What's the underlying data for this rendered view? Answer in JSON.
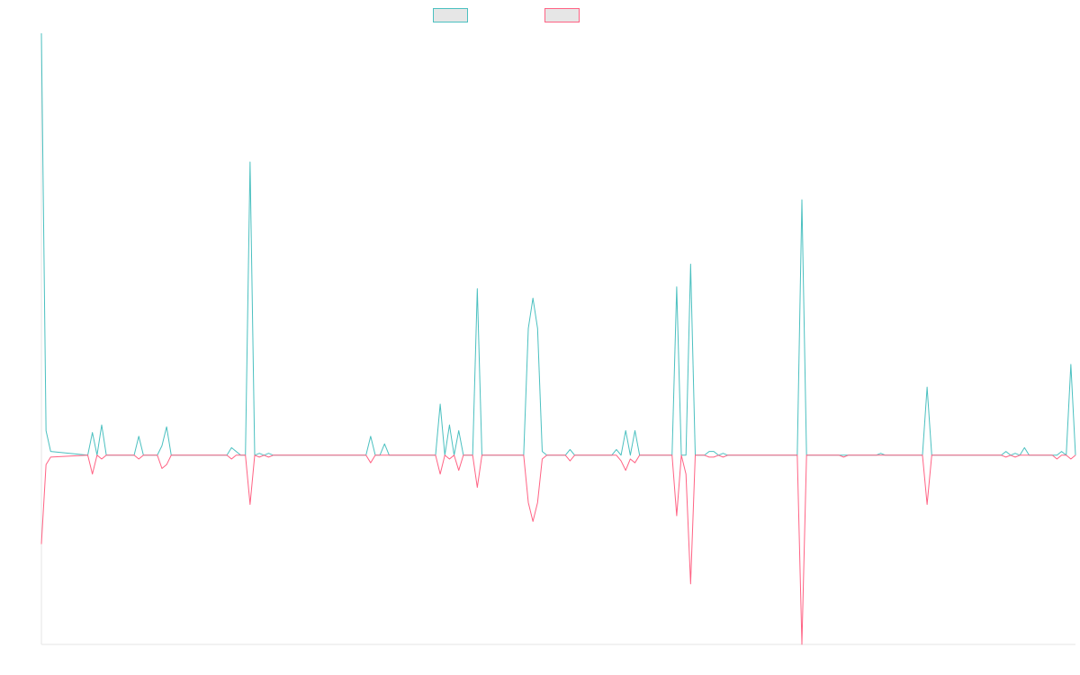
{
  "chart_data": {
    "type": "line",
    "title": "",
    "xlabel": "",
    "ylabel": "",
    "legend": {
      "placement": "top-center",
      "show_text": false
    },
    "grid": false,
    "x_count": 224,
    "ylim": [
      -100,
      223
    ],
    "series": [
      {
        "color": "#4bc0c0",
        "points": [
          [
            0,
            223
          ],
          [
            1,
            13
          ],
          [
            2,
            2
          ],
          [
            10,
            0
          ],
          [
            11,
            12
          ],
          [
            12,
            0
          ],
          [
            13,
            16
          ],
          [
            14,
            0
          ],
          [
            20,
            0
          ],
          [
            21,
            10
          ],
          [
            22,
            0
          ],
          [
            25,
            0
          ],
          [
            26,
            5
          ],
          [
            27,
            15
          ],
          [
            28,
            0
          ],
          [
            40,
            0
          ],
          [
            41,
            4
          ],
          [
            42,
            2
          ],
          [
            43,
            0
          ],
          [
            44,
            0
          ],
          [
            45,
            155
          ],
          [
            46,
            0
          ],
          [
            47,
            1
          ],
          [
            48,
            0
          ],
          [
            49,
            1
          ],
          [
            50,
            0
          ],
          [
            70,
            0
          ],
          [
            71,
            10
          ],
          [
            72,
            0
          ],
          [
            73,
            0
          ],
          [
            74,
            6
          ],
          [
            75,
            0
          ],
          [
            85,
            0
          ],
          [
            86,
            27
          ],
          [
            87,
            0
          ],
          [
            88,
            16
          ],
          [
            89,
            0
          ],
          [
            90,
            13
          ],
          [
            91,
            0
          ],
          [
            93,
            0
          ],
          [
            94,
            88
          ],
          [
            95,
            0
          ],
          [
            104,
            0
          ],
          [
            105,
            67
          ],
          [
            106,
            83
          ],
          [
            107,
            67
          ],
          [
            108,
            2
          ],
          [
            109,
            0
          ],
          [
            113,
            0
          ],
          [
            114,
            3
          ],
          [
            115,
            0
          ],
          [
            123,
            0
          ],
          [
            124,
            3
          ],
          [
            125,
            0
          ],
          [
            126,
            13
          ],
          [
            127,
            0
          ],
          [
            128,
            13
          ],
          [
            129,
            0
          ],
          [
            136,
            0
          ],
          [
            137,
            89
          ],
          [
            138,
            0
          ],
          [
            139,
            0
          ],
          [
            140,
            101
          ],
          [
            141,
            0
          ],
          [
            143,
            0
          ],
          [
            144,
            2
          ],
          [
            145,
            2
          ],
          [
            146,
            0
          ],
          [
            147,
            1
          ],
          [
            148,
            0
          ],
          [
            163,
            0
          ],
          [
            164,
            135
          ],
          [
            165,
            0
          ],
          [
            180,
            0
          ],
          [
            181,
            1
          ],
          [
            182,
            0
          ],
          [
            190,
            0
          ],
          [
            191,
            36
          ],
          [
            192,
            0
          ],
          [
            207,
            0
          ],
          [
            208,
            2
          ],
          [
            209,
            0
          ],
          [
            210,
            1
          ],
          [
            211,
            0
          ],
          [
            212,
            4
          ],
          [
            213,
            0
          ],
          [
            219,
            0
          ],
          [
            220,
            2
          ],
          [
            221,
            0
          ],
          [
            222,
            48
          ],
          [
            223,
            0
          ]
        ]
      },
      {
        "color": "#ff6384",
        "points": [
          [
            0,
            -47
          ],
          [
            1,
            -5
          ],
          [
            2,
            -1
          ],
          [
            10,
            0
          ],
          [
            11,
            -10
          ],
          [
            12,
            0
          ],
          [
            13,
            -2
          ],
          [
            14,
            0
          ],
          [
            20,
            0
          ],
          [
            21,
            -2
          ],
          [
            22,
            0
          ],
          [
            25,
            0
          ],
          [
            26,
            -7
          ],
          [
            27,
            -5
          ],
          [
            28,
            0
          ],
          [
            40,
            0
          ],
          [
            41,
            -2
          ],
          [
            42,
            0
          ],
          [
            43,
            0
          ],
          [
            44,
            0
          ],
          [
            45,
            -26
          ],
          [
            46,
            0
          ],
          [
            47,
            -1
          ],
          [
            48,
            0
          ],
          [
            49,
            -1
          ],
          [
            50,
            0
          ],
          [
            70,
            0
          ],
          [
            71,
            -4
          ],
          [
            72,
            0
          ],
          [
            85,
            0
          ],
          [
            86,
            -10
          ],
          [
            87,
            0
          ],
          [
            88,
            -2
          ],
          [
            89,
            0
          ],
          [
            90,
            -8
          ],
          [
            91,
            0
          ],
          [
            93,
            0
          ],
          [
            94,
            -17
          ],
          [
            95,
            0
          ],
          [
            104,
            0
          ],
          [
            105,
            -25
          ],
          [
            106,
            -35
          ],
          [
            107,
            -25
          ],
          [
            108,
            -2
          ],
          [
            109,
            0
          ],
          [
            113,
            0
          ],
          [
            114,
            -3
          ],
          [
            115,
            0
          ],
          [
            124,
            0
          ],
          [
            125,
            -3
          ],
          [
            126,
            -8
          ],
          [
            127,
            -2
          ],
          [
            128,
            -4
          ],
          [
            129,
            0
          ],
          [
            136,
            0
          ],
          [
            137,
            -32
          ],
          [
            138,
            0
          ],
          [
            139,
            -10
          ],
          [
            140,
            -68
          ],
          [
            141,
            0
          ],
          [
            143,
            0
          ],
          [
            144,
            -1
          ],
          [
            145,
            -1
          ],
          [
            146,
            0
          ],
          [
            147,
            -1
          ],
          [
            148,
            0
          ],
          [
            163,
            0
          ],
          [
            164,
            -100
          ],
          [
            165,
            0
          ],
          [
            172,
            0
          ],
          [
            173,
            -1
          ],
          [
            174,
            0
          ],
          [
            190,
            0
          ],
          [
            191,
            -26
          ],
          [
            192,
            0
          ],
          [
            207,
            0
          ],
          [
            208,
            -1
          ],
          [
            209,
            0
          ],
          [
            210,
            -1
          ],
          [
            211,
            0
          ],
          [
            218,
            0
          ],
          [
            219,
            -2
          ],
          [
            220,
            0
          ],
          [
            221,
            0
          ],
          [
            222,
            -2
          ],
          [
            223,
            0
          ]
        ]
      }
    ]
  }
}
